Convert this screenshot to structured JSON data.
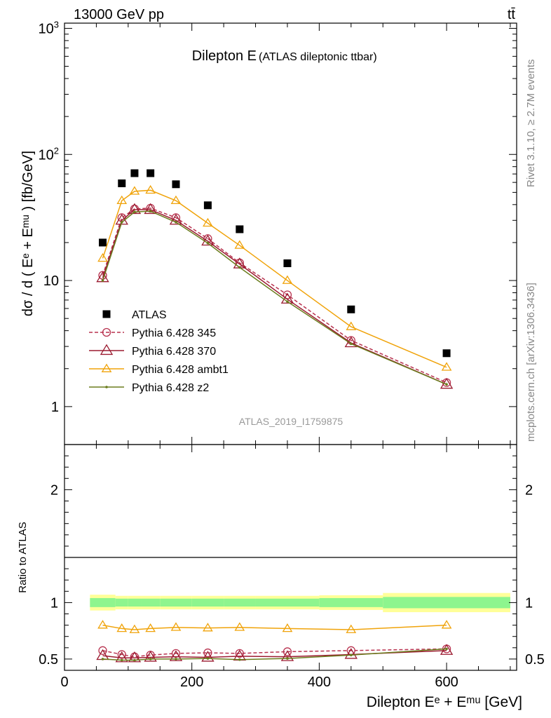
{
  "header": {
    "energy_label": "13000 GeV pp",
    "process_label": "tt̄"
  },
  "side_labels": {
    "rivet": "Rivet 3.1.10, ≥ 2.7M events",
    "mcplots": "mcplots.cern.ch [arXiv:1306.3436]"
  },
  "chart_data": [
    {
      "type": "line",
      "panel": "main",
      "title": "Dilepton E",
      "subtitle": "(ATLAS dileptonic ttbar)",
      "watermark": "ATLAS_2019_I1759875",
      "xlabel": "Dilepton Eᵉ + Eᵐᵘ [GeV]",
      "ylabel": "dσ / d ( Eᵉ + Eᵐᵘ ) [fb/GeV]",
      "yscale": "log",
      "xlim": [
        0,
        710
      ],
      "ylim": [
        0.5,
        1100
      ],
      "y_ticks": [
        {
          "value": 1,
          "label": "1"
        },
        {
          "value": 10,
          "label": "10"
        },
        {
          "value": 100,
          "label": "10²"
        },
        {
          "value": 1000,
          "label": "10³"
        }
      ],
      "x": [
        60,
        90,
        110,
        135,
        175,
        225,
        275,
        350,
        450,
        600
      ],
      "series": [
        {
          "name": "ATLAS",
          "color": "#000000",
          "marker": "square",
          "values": [
            20.0,
            59.0,
            71.0,
            71.0,
            58.0,
            39.5,
            25.5,
            13.7,
            5.9,
            2.65
          ]
        },
        {
          "name": "Pythia 6.428 345",
          "color": "#b8324f",
          "marker": "open-circle",
          "dash": true,
          "values": [
            11.0,
            31.5,
            37.0,
            37.5,
            31.5,
            21.5,
            13.8,
            7.7,
            3.35,
            1.55
          ]
        },
        {
          "name": "Pythia 6.428 370",
          "color": "#9b1b30",
          "marker": "open-triangle",
          "values": [
            10.5,
            30.0,
            36.5,
            36.5,
            30.0,
            20.5,
            13.5,
            7.1,
            3.2,
            1.5
          ]
        },
        {
          "name": "Pythia 6.428 ambt1",
          "color": "#f0a30a",
          "marker": "open-triangle",
          "values": [
            15.0,
            43.0,
            51.0,
            52.0,
            43.0,
            28.5,
            19.0,
            10.0,
            4.3,
            2.05
          ]
        },
        {
          "name": "Pythia 6.428 z2",
          "color": "#6b7d1e",
          "marker": "dot",
          "values": [
            10.0,
            29.0,
            35.0,
            35.5,
            29.0,
            19.8,
            12.7,
            6.8,
            3.15,
            1.5
          ]
        }
      ],
      "legend": "middle-left"
    },
    {
      "type": "line",
      "panel": "ratio",
      "ylabel": "Ratio to ATLAS",
      "xlabel": "Dilepton Eᵉ + Eᵐᵘ [GeV]",
      "xlim": [
        0,
        710
      ],
      "ylim": [
        0.4,
        2.4
      ],
      "x_ticks": [
        0,
        200,
        400,
        600
      ],
      "y_ticks": [
        0.5,
        1,
        2
      ],
      "bins": [
        [
          40,
          80
        ],
        [
          80,
          100
        ],
        [
          100,
          120
        ],
        [
          120,
          150
        ],
        [
          150,
          200
        ],
        [
          200,
          250
        ],
        [
          250,
          300
        ],
        [
          300,
          400
        ],
        [
          400,
          500
        ],
        [
          500,
          700
        ]
      ],
      "band_stat": [
        0.04,
        0.035,
        0.035,
        0.035,
        0.035,
        0.035,
        0.035,
        0.035,
        0.04,
        0.05
      ],
      "band_total": [
        0.07,
        0.06,
        0.06,
        0.06,
        0.06,
        0.06,
        0.06,
        0.06,
        0.065,
        0.085
      ],
      "band_colors": {
        "stat": "#8ef58e",
        "total": "#ffff99"
      },
      "x": [
        60,
        90,
        110,
        135,
        175,
        225,
        275,
        350,
        450,
        600
      ],
      "series": [
        {
          "name": "Pythia 6.428 345",
          "color": "#b8324f",
          "marker": "open-circle",
          "dash": true,
          "values": [
            0.575,
            0.54,
            0.52,
            0.535,
            0.55,
            0.555,
            0.55,
            0.565,
            0.575,
            0.59
          ]
        },
        {
          "name": "Pythia 6.428 370",
          "color": "#9b1b30",
          "marker": "open-triangle",
          "values": [
            0.53,
            0.51,
            0.51,
            0.515,
            0.52,
            0.515,
            0.525,
            0.52,
            0.54,
            0.575
          ]
        },
        {
          "name": "Pythia 6.428 ambt1",
          "color": "#f0a30a",
          "marker": "open-triangle",
          "values": [
            0.8,
            0.77,
            0.76,
            0.77,
            0.78,
            0.775,
            0.78,
            0.77,
            0.76,
            0.8
          ]
        },
        {
          "name": "Pythia 6.428 z2",
          "color": "#6b7d1e",
          "marker": "dot",
          "values": [
            0.5,
            0.49,
            0.49,
            0.5,
            0.5,
            0.505,
            0.495,
            0.505,
            0.535,
            0.59
          ]
        }
      ]
    }
  ]
}
